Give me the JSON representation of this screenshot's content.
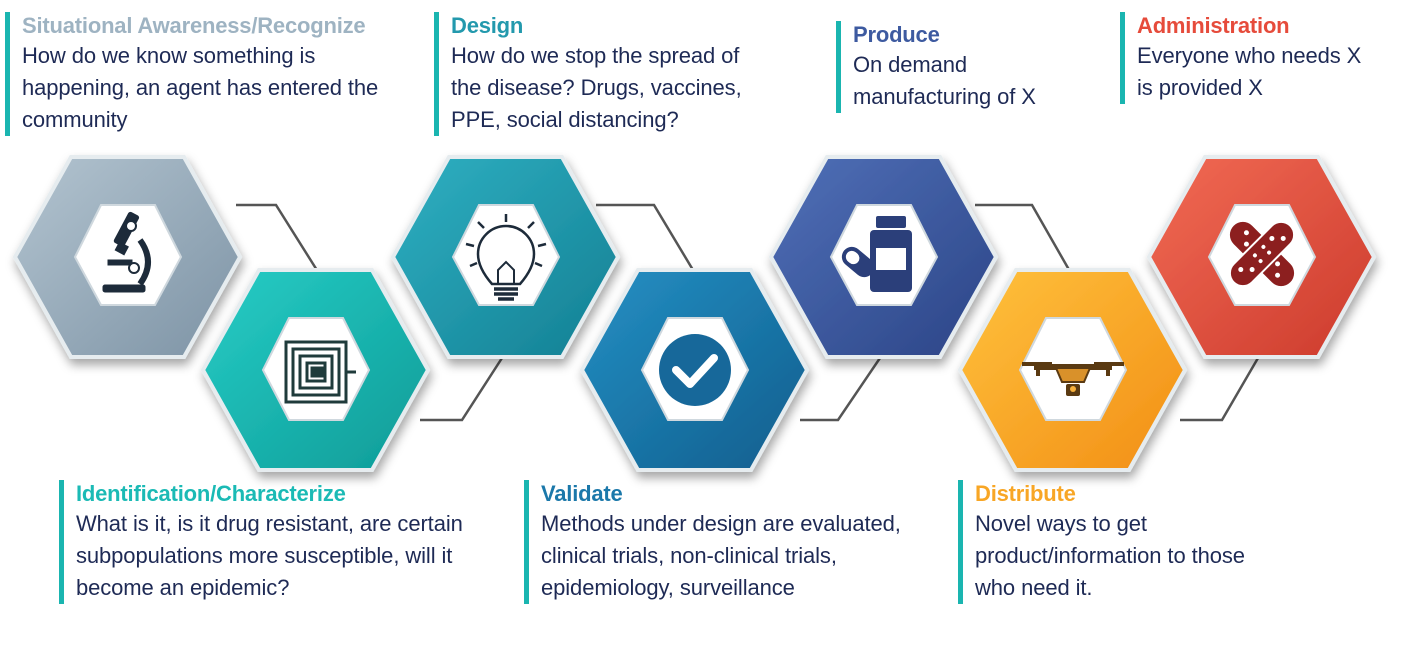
{
  "steps": [
    {
      "title": "Situational Awareness/Recognize",
      "text": "How do we know something is happening, an agent has entered the community",
      "color": "#9eb3c2",
      "icon": "microscope-icon"
    },
    {
      "title": "Identification/Characterize",
      "text": "What is it, is it drug resistant, are certain subpopulations more susceptible, will it become an epidemic?",
      "color": "#1bbab5",
      "icon": "rfid-chip-icon"
    },
    {
      "title": "Design",
      "text": "How do we stop the spread of the disease? Drugs, vaccines, PPE, social distancing?",
      "color": "#2399ad",
      "icon": "lightbulb-icon"
    },
    {
      "title": "Validate",
      "text": "Methods under design are evaluated, clinical trials, non-clinical trials, epidemiology, surveillance",
      "color": "#1b78aa",
      "icon": "checkmark-icon"
    },
    {
      "title": "Produce",
      "text": "On demand manufacturing of X",
      "color": "#3d5aa0",
      "icon": "medicine-bottle-icon"
    },
    {
      "title": "Distribute",
      "text": "Novel ways to get product/information to those who need it.",
      "color": "#f8a625",
      "icon": "drone-icon"
    },
    {
      "title": "Administration",
      "text": "Everyone who needs X is provided X",
      "color": "#e64b3b",
      "icon": "bandage-icon"
    }
  ],
  "colors": {
    "body_text": "#1e2a55",
    "caption_bar": "#1ab5b0",
    "connector": "#555555"
  }
}
